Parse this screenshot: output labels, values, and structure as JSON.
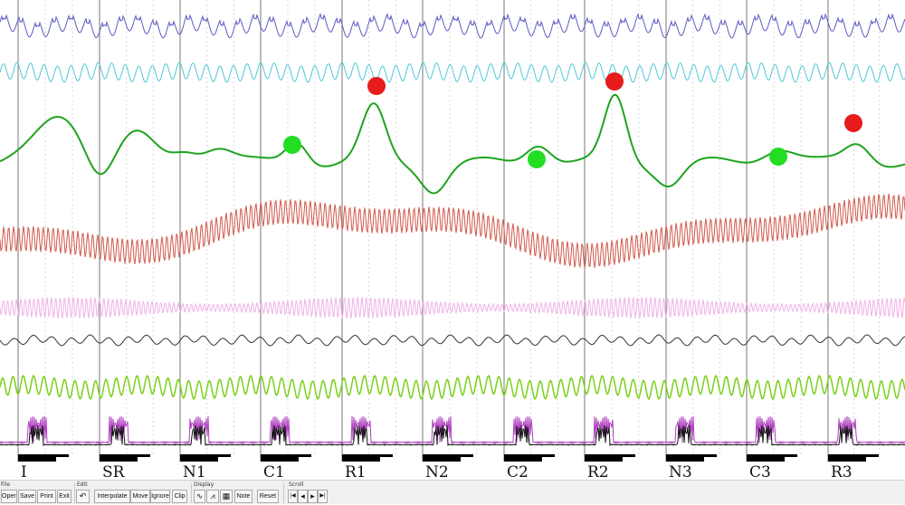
{
  "segments": [
    "I",
    "SR",
    "N1",
    "C1",
    "R1",
    "N2",
    "C2",
    "R2",
    "N3",
    "C3",
    "R3"
  ],
  "colors": {
    "background": "#ffffff",
    "grid_major": "#7a7a7a",
    "grid_minor": "#d8d8d8",
    "trace1": "#5b5bc2",
    "trace2": "#4ec9d6",
    "trace3": "#1fa31f",
    "trace4": "#d1584a",
    "trace5": "#f0b2e8",
    "trace6": "#333333",
    "trace7": "#7ad11a",
    "trace8_purple": "#b040c0",
    "trace8_black": "#111111",
    "marker_red": "#e61c1c",
    "marker_green": "#22dd22",
    "event_bar": "#000000"
  },
  "markers": [
    {
      "color": "red",
      "segment": "R1"
    },
    {
      "color": "red",
      "segment": "R2"
    },
    {
      "color": "red",
      "segment": "R3"
    },
    {
      "color": "green",
      "segment": "C1"
    },
    {
      "color": "green",
      "segment": "C2"
    },
    {
      "color": "green",
      "segment": "C3"
    }
  ],
  "toolbar": {
    "file": {
      "title": "File",
      "open": "Open",
      "save": "Save",
      "print": "Print",
      "exit": "Exit"
    },
    "edit": {
      "title": "Edit",
      "undo_icon": "undo-icon",
      "interpolate": "Interpolate",
      "move": "Move",
      "ignore": "Ignore",
      "clip": "Clip"
    },
    "display": {
      "title": "Display",
      "smooth_wave_icon": "smooth-wave-icon",
      "raw_wave_icon": "raw-wave-icon",
      "grid_icon": "grid-icon",
      "note": "Note",
      "reset": "Reset"
    },
    "scroll": {
      "title": "Scroll",
      "first": "|◀",
      "prev": "◂",
      "next": "▸",
      "last": "▶|"
    }
  }
}
